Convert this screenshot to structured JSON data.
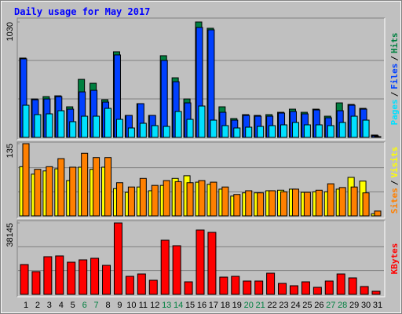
{
  "chart_data": [
    {
      "type": "bar",
      "title": "Daily usage for May 2017",
      "label_separator": "/",
      "ylim": [
        0,
        1030
      ],
      "yticks": [
        1030
      ],
      "series": [
        {
          "name": "Hits",
          "color": "#008040",
          "values": [
            708,
            343,
            364,
            371,
            273,
            518,
            483,
            336,
            764,
            196,
            301,
            196,
            729,
            532,
            343,
            1030,
            974,
            273,
            168,
            203,
            196,
            203,
            224,
            252,
            224,
            252,
            189,
            308,
            294,
            259,
            21
          ]
        },
        {
          "name": "Files",
          "color": "#0040ff",
          "values": [
            701,
            336,
            343,
            364,
            252,
            406,
            420,
            315,
            736,
            196,
            301,
            196,
            687,
            497,
            308,
            981,
            960,
            224,
            154,
            196,
            189,
            189,
            217,
            231,
            210,
            245,
            175,
            238,
            287,
            252,
            14
          ]
        },
        {
          "name": "Pages",
          "color": "#00e0ff",
          "values": [
            287,
            203,
            210,
            238,
            140,
            189,
            189,
            259,
            161,
            84,
            126,
            105,
            98,
            231,
            161,
            280,
            154,
            105,
            84,
            91,
            98,
            105,
            112,
            133,
            112,
            112,
            105,
            133,
            189,
            154,
            7
          ]
        }
      ]
    },
    {
      "type": "bar",
      "label_separator": "/",
      "ylim": [
        0,
        135
      ],
      "yticks": [
        135
      ],
      "series": [
        {
          "name": "Visits",
          "color": "#ffff00",
          "values": [
            92,
            78,
            84,
            88,
            66,
            91,
            87,
            91,
            51,
            44,
            54,
            47,
            57,
            70,
            75,
            63,
            59,
            50,
            37,
            43,
            43,
            47,
            48,
            50,
            44,
            45,
            45,
            50,
            72,
            65,
            4
          ]
        },
        {
          "name": "Sites",
          "color": "#ff8000",
          "values": [
            135,
            87,
            92,
            107,
            91,
            117,
            109,
            109,
            62,
            54,
            70,
            57,
            66,
            64,
            62,
            66,
            63,
            54,
            40,
            47,
            43,
            47,
            45,
            50,
            44,
            48,
            60,
            53,
            54,
            43,
            9
          ]
        }
      ]
    },
    {
      "type": "bar",
      "ylim": [
        0,
        38145
      ],
      "yticks": [
        38145
      ],
      "categories": [
        "1",
        "2",
        "3",
        "4",
        "5",
        "6",
        "7",
        "8",
        "9",
        "10",
        "11",
        "12",
        "13",
        "14",
        "15",
        "16",
        "17",
        "18",
        "19",
        "20",
        "21",
        "22",
        "23",
        "24",
        "25",
        "26",
        "27",
        "28",
        "29",
        "30",
        "31"
      ],
      "category_colors": [
        "#000000",
        "#000000",
        "#000000",
        "#000000",
        "#000000",
        "#008040",
        "#008040",
        "#000000",
        "#000000",
        "#000000",
        "#000000",
        "#000000",
        "#008040",
        "#008040",
        "#000000",
        "#000000",
        "#000000",
        "#000000",
        "#000000",
        "#008040",
        "#008040",
        "#000000",
        "#000000",
        "#000000",
        "#000000",
        "#000000",
        "#008040",
        "#008040",
        "#000000",
        "#000000",
        "#000000"
      ],
      "series": [
        {
          "name": "KBytes",
          "color": "#ff0000",
          "values": [
            15929,
            12156,
            20122,
            20541,
            17187,
            18445,
            19283,
            15510,
            38145,
            9642,
            10899,
            7546,
            28926,
            25991,
            6707,
            34372,
            33117,
            9222,
            9642,
            7127,
            7127,
            11318,
            5869,
            4611,
            6707,
            3773,
            7127,
            10899,
            8803,
            4192,
            1677
          ]
        }
      ]
    }
  ]
}
